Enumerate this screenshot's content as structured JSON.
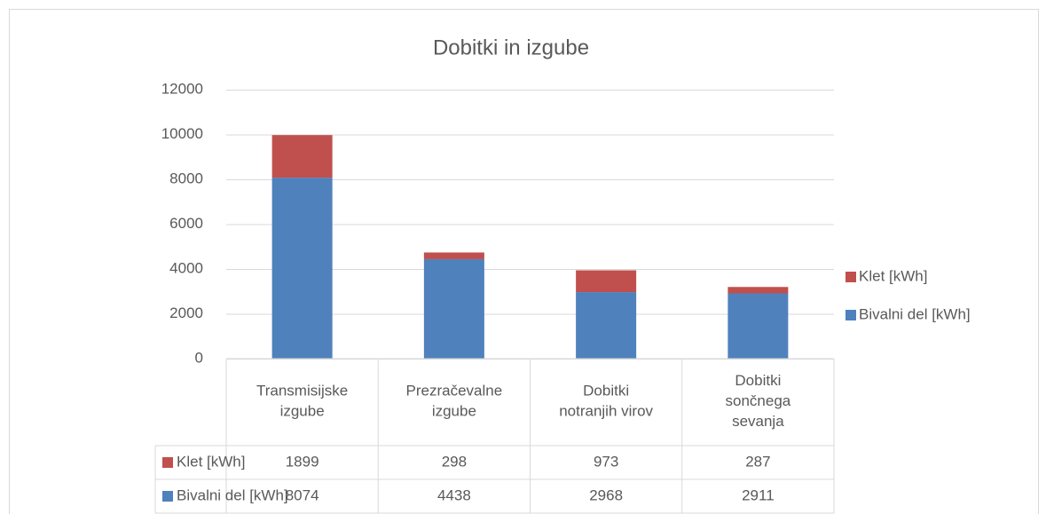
{
  "chart_data": {
    "type": "bar",
    "stacked": true,
    "title": "Dobitki in izgube",
    "categories": [
      "Transmisijske\nizgube",
      "Prezračevalne\nizgube",
      "Dobitki\nnotranjih virov",
      "Dobitki\nsončnega\nsevanja"
    ],
    "series": [
      {
        "name": "Klet [kWh]",
        "color": "#c0504d",
        "values": [
          1899,
          298,
          973,
          287
        ]
      },
      {
        "name": "Bivalni del [kWh]",
        "color": "#4f81bd",
        "values": [
          8074,
          4438,
          2968,
          2911
        ]
      }
    ],
    "ylim": [
      0,
      12000
    ],
    "yticks": [
      0,
      2000,
      4000,
      6000,
      8000,
      10000,
      12000
    ],
    "grid": true,
    "legend": "right",
    "data_table": true
  }
}
